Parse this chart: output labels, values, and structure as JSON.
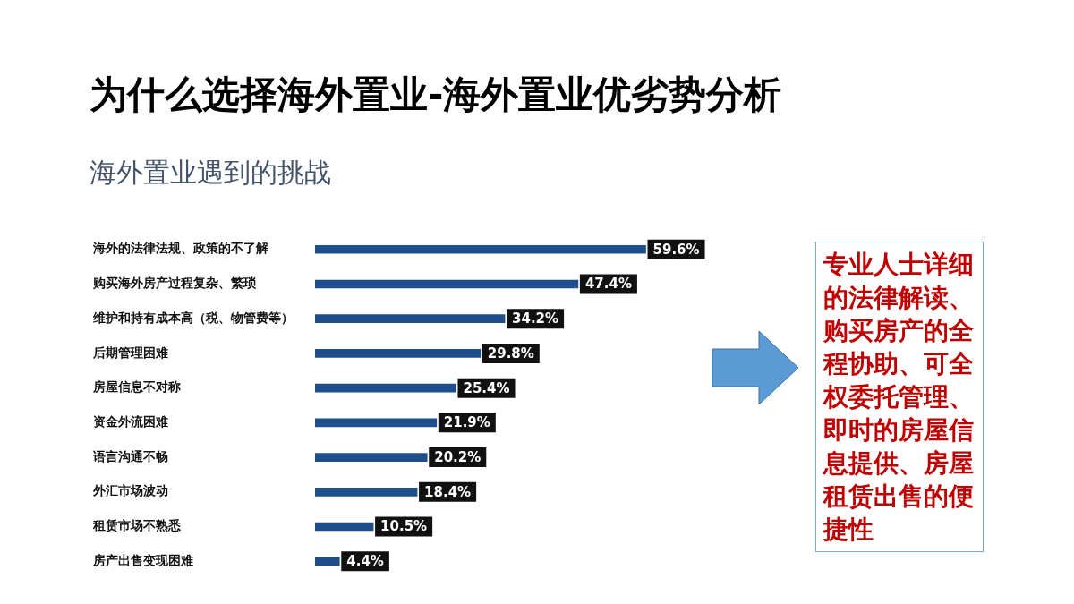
{
  "chart_data": {
    "type": "bar",
    "orientation": "horizontal",
    "title": "为什么选择海外置业-海外置业优劣势分析",
    "subtitle": "海外置业遇到的挑战",
    "categories": [
      "海外的法律法规、政策的不了解",
      "购买海外房产过程复杂、繁琐",
      "维护和持有成本高（税、物管费等）",
      "后期管理困难",
      "房屋信息不对称",
      "资金外流困难",
      "语言沟通不畅",
      "外汇市场波动",
      "租赁市场不熟悉",
      "房产出售变现困难"
    ],
    "values": [
      59.6,
      47.4,
      34.2,
      29.8,
      25.4,
      21.9,
      20.2,
      18.4,
      10.5,
      4.4
    ],
    "value_labels": [
      "59.6%",
      "47.4%",
      "34.2%",
      "29.8%",
      "25.4%",
      "21.9%",
      "20.2%",
      "18.4%",
      "10.5%",
      "4.4%"
    ],
    "color": "#1f4e8c",
    "annotations": [
      "专业人士详细的法律解读、购买房产的全程协助、可全权委托管理、即时的房屋信息提供、房屋租赁出售的便捷性"
    ]
  }
}
